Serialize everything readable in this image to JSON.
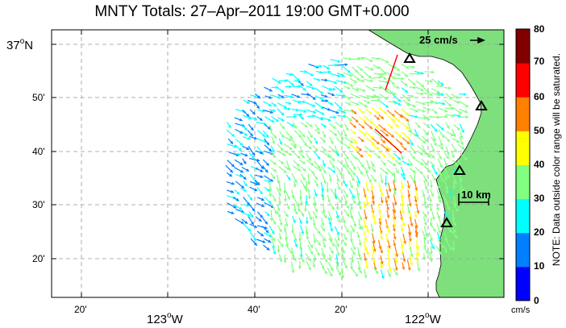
{
  "title": "MNTY Totals: 27–Apr–2011 19:00 GMT+0.000",
  "y_labels": [
    {
      "main": "37",
      "sup": "o",
      "hem": "N"
    },
    {
      "main": "50'"
    },
    {
      "main": "40'"
    },
    {
      "main": "30'"
    },
    {
      "main": "20'"
    }
  ],
  "x_labels": [
    {
      "main": "20'"
    },
    {
      "main": "123",
      "sup": "o",
      "hem": "W"
    },
    {
      "main": "40'"
    },
    {
      "main": "20'"
    },
    {
      "main": "122",
      "sup": "o",
      "hem": "W"
    }
  ],
  "colorbar": {
    "ticks": [
      "80",
      "70",
      "60",
      "50",
      "40",
      "30",
      "20",
      "10",
      "0"
    ],
    "unit": "cm/s",
    "colors": [
      "#0000ff",
      "#0080ff",
      "#00ffff",
      "#80ff80",
      "#ffff00",
      "#ff8000",
      "#ff0000",
      "#800000"
    ]
  },
  "note": "NOTE: Data outside color range will be saturated.",
  "scale_vector_label": "25 cm/s",
  "scale_bar_label": "10 km",
  "colors": {
    "land": "#7de07d",
    "coast": "#000000"
  }
}
